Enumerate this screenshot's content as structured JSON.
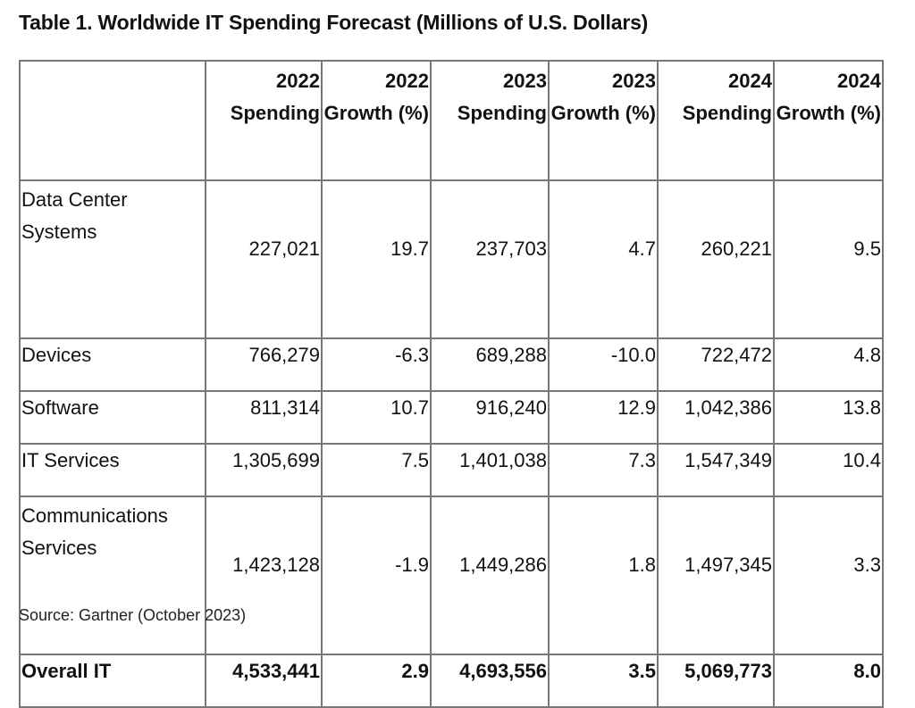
{
  "title": "Table 1. Worldwide IT Spending Forecast (Millions of U.S. Dollars)",
  "table": {
    "headers": [
      "",
      "2022 Spending",
      "2022 Growth (%)",
      "2023 Spending",
      "2023 Growth (%)",
      "2024 Spending",
      "2024 Growth (%)"
    ],
    "rows": [
      {
        "label": "Data Center Systems",
        "values": [
          "227,021",
          "19.7",
          "237,703",
          "4.7",
          "260,221",
          "9.5"
        ]
      },
      {
        "label": "Devices",
        "values": [
          "766,279",
          "-6.3",
          "689,288",
          "-10.0",
          "722,472",
          "4.8"
        ]
      },
      {
        "label": "Software",
        "values": [
          "811,314",
          "10.7",
          "916,240",
          "12.9",
          "1,042,386",
          "13.8"
        ]
      },
      {
        "label": "IT Services",
        "values": [
          "1,305,699",
          "7.5",
          "1,401,038",
          "7.3",
          "1,547,349",
          "10.4"
        ]
      },
      {
        "label": "Communications Services",
        "values": [
          "1,423,128",
          "-1.9",
          "1,449,286",
          "1.8",
          "1,497,345",
          "3.3"
        ]
      },
      {
        "label": "Overall IT",
        "values": [
          "4,533,441",
          "2.9",
          "4,693,556",
          "3.5",
          "5,069,773",
          "8.0"
        ]
      }
    ]
  },
  "source": "Source: Gartner (October 2023)"
}
